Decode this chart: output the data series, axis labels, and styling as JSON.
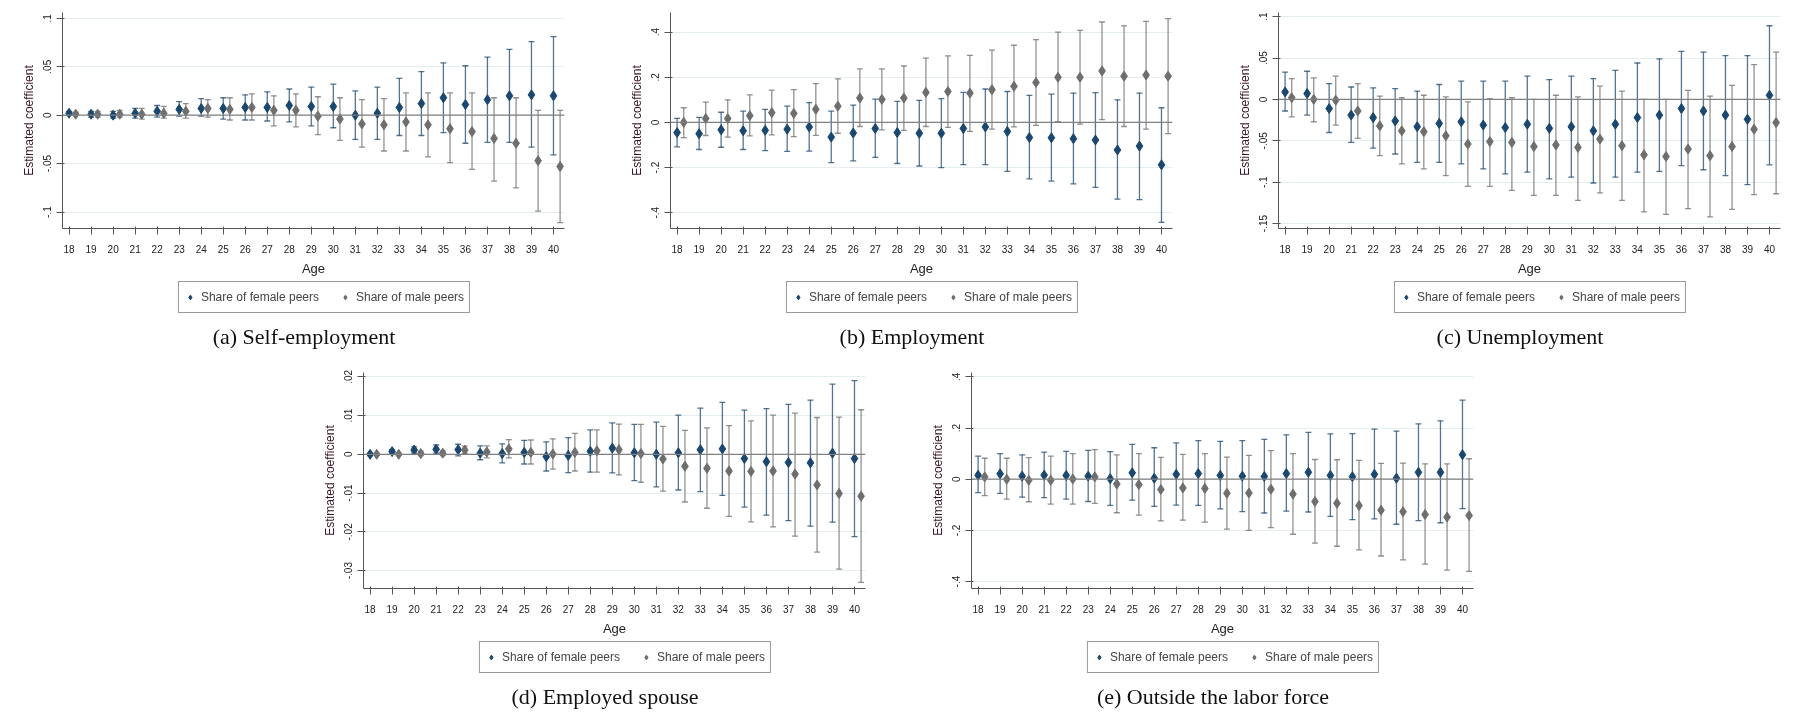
{
  "chart_data": [
    {
      "type": "scatter",
      "title": "(a) Self-employment",
      "xlabel": "Age",
      "ylabel": "Estimated coefficient",
      "marker": "diamond",
      "grid": "y",
      "legend": "bottom",
      "xlim": [
        17.7,
        40.5
      ],
      "ylim": [
        -0.117,
        0.106
      ],
      "xticks": [
        18,
        19,
        20,
        21,
        22,
        23,
        24,
        25,
        26,
        27,
        28,
        29,
        30,
        31,
        32,
        33,
        34,
        35,
        36,
        37,
        38,
        39,
        40
      ],
      "yticks": [
        {
          "value": -0.1,
          "label": "-.1"
        },
        {
          "value": -0.05,
          "label": "-.05"
        },
        0,
        {
          "value": 0.05,
          "label": ".05"
        },
        {
          "value": 0.1,
          "label": ".1"
        }
      ],
      "ref_lines": [
        {
          "axis": "y",
          "value": 0,
          "color": "#808080"
        }
      ],
      "series": [
        {
          "name": "Share of female peers",
          "color": "#1a476f",
          "x": [
            18,
            19,
            20,
            21,
            22,
            23,
            24,
            25,
            26,
            27,
            28,
            29,
            30,
            31,
            32,
            33,
            34,
            35,
            36,
            37,
            38,
            39,
            40
          ],
          "values": [
            0.002,
            0.001,
            0,
            0.002,
            0.004,
            0.006,
            0.007,
            0.007,
            0.008,
            0.008,
            0.01,
            0.009,
            0.009,
            0,
            0.002,
            0.008,
            0.012,
            0.018,
            0.011,
            0.016,
            0.02,
            0.021,
            0.02
          ],
          "errors": [
            [
              0,
              0.004
            ],
            [
              -0.002,
              0.004
            ],
            [
              -0.003,
              0.004
            ],
            [
              -0.003,
              0.007
            ],
            [
              -0.002,
              0.01
            ],
            [
              -0.001,
              0.014
            ],
            [
              -0.001,
              0.017
            ],
            [
              -0.004,
              0.018
            ],
            [
              -0.005,
              0.021
            ],
            [
              -0.006,
              0.024
            ],
            [
              -0.007,
              0.027
            ],
            [
              -0.011,
              0.029
            ],
            [
              -0.013,
              0.032
            ],
            [
              -0.025,
              0.025
            ],
            [
              -0.025,
              0.029
            ],
            [
              -0.021,
              0.038
            ],
            [
              -0.021,
              0.045
            ],
            [
              -0.018,
              0.054
            ],
            [
              -0.029,
              0.051
            ],
            [
              -0.028,
              0.06
            ],
            [
              -0.028,
              0.068
            ],
            [
              -0.033,
              0.076
            ],
            [
              -0.041,
              0.081
            ]
          ]
        },
        {
          "name": "Share of male peers",
          "color": "#6e6e6e",
          "x": [
            18.3,
            19.3,
            20.3,
            21.3,
            22.3,
            23.3,
            24.3,
            25.3,
            26.3,
            27.3,
            28.3,
            29.3,
            30.3,
            31.3,
            32.3,
            33.3,
            34.3,
            35.3,
            36.3,
            37.3,
            38.3,
            39.3,
            40.3
          ],
          "values": [
            0.001,
            0.001,
            0.001,
            0.001,
            0.002,
            0.004,
            0.007,
            0.006,
            0.008,
            0.005,
            0.005,
            -0.001,
            -0.004,
            -0.009,
            -0.01,
            -0.007,
            -0.01,
            -0.014,
            -0.017,
            -0.024,
            -0.029,
            -0.047,
            -0.053
          ],
          "errors": [
            [
              0,
              0.003
            ],
            [
              -0.002,
              0.004
            ],
            [
              -0.002,
              0.005
            ],
            [
              -0.004,
              0.007
            ],
            [
              -0.003,
              0.009
            ],
            [
              -0.003,
              0.012
            ],
            [
              -0.002,
              0.016
            ],
            [
              -0.005,
              0.018
            ],
            [
              -0.005,
              0.022
            ],
            [
              -0.011,
              0.02
            ],
            [
              -0.012,
              0.022
            ],
            [
              -0.02,
              0.019
            ],
            [
              -0.026,
              0.018
            ],
            [
              -0.033,
              0.016
            ],
            [
              -0.037,
              0.017
            ],
            [
              -0.037,
              0.023
            ],
            [
              -0.043,
              0.023
            ],
            [
              -0.049,
              0.023
            ],
            [
              -0.056,
              0.023
            ],
            [
              -0.068,
              0.018
            ],
            [
              -0.075,
              0.018
            ],
            [
              -0.099,
              0.005
            ],
            [
              -0.111,
              0.005
            ]
          ]
        }
      ]
    },
    {
      "type": "scatter",
      "title": "(b) Employment",
      "xlabel": "Age",
      "ylabel": "Estimated coefficient",
      "marker": "diamond",
      "grid": "y",
      "legend": "bottom",
      "xlim": [
        17.7,
        40.5
      ],
      "ylim": [
        -0.47,
        0.487
      ],
      "xticks": [
        18,
        19,
        20,
        21,
        22,
        23,
        24,
        25,
        26,
        27,
        28,
        29,
        30,
        31,
        32,
        33,
        34,
        35,
        36,
        37,
        38,
        39,
        40
      ],
      "yticks": [
        {
          "value": -0.4,
          "label": "-.4"
        },
        {
          "value": -0.2,
          "label": "-.2"
        },
        0,
        {
          "value": 0.2,
          "label": ".2"
        },
        {
          "value": 0.4,
          "label": ".4"
        }
      ],
      "ref_lines": [
        {
          "axis": "y",
          "value": 0,
          "color": "#808080"
        }
      ],
      "series": [
        {
          "name": "Share of female peers",
          "color": "#1a476f",
          "x": [
            18,
            19,
            20,
            21,
            22,
            23,
            24,
            25,
            26,
            27,
            28,
            29,
            30,
            31,
            32,
            33,
            34,
            35,
            36,
            37,
            38,
            39,
            40
          ],
          "values": [
            -0.045,
            -0.05,
            -0.033,
            -0.037,
            -0.035,
            -0.03,
            -0.02,
            -0.065,
            -0.047,
            -0.027,
            -0.045,
            -0.048,
            -0.048,
            -0.027,
            -0.02,
            -0.04,
            -0.067,
            -0.068,
            -0.072,
            -0.078,
            -0.122,
            -0.105,
            -0.188
          ],
          "errors": [
            [
              -0.108,
              0.018
            ],
            [
              -0.12,
              0.022
            ],
            [
              -0.11,
              0.045
            ],
            [
              -0.12,
              0.05
            ],
            [
              -0.125,
              0.058
            ],
            [
              -0.128,
              0.072
            ],
            [
              -0.127,
              0.088
            ],
            [
              -0.178,
              0.05
            ],
            [
              -0.17,
              0.077
            ],
            [
              -0.155,
              0.103
            ],
            [
              -0.182,
              0.093
            ],
            [
              -0.193,
              0.098
            ],
            [
              -0.2,
              0.105
            ],
            [
              -0.187,
              0.133
            ],
            [
              -0.187,
              0.148
            ],
            [
              -0.217,
              0.137
            ],
            [
              -0.25,
              0.12
            ],
            [
              -0.26,
              0.125
            ],
            [
              -0.272,
              0.13
            ],
            [
              -0.288,
              0.132
            ],
            [
              -0.34,
              0.1
            ],
            [
              -0.342,
              0.13
            ],
            [
              -0.443,
              0.065
            ]
          ]
        },
        {
          "name": "Share of male peers",
          "color": "#6e6e6e",
          "x": [
            18.3,
            19.3,
            20.3,
            21.3,
            22.3,
            23.3,
            24.3,
            25.3,
            26.3,
            27.3,
            28.3,
            29.3,
            30.3,
            31.3,
            32.3,
            33.3,
            34.3,
            35.3,
            36.3,
            37.3,
            38.3,
            39.3,
            40.3
          ],
          "values": [
            0,
            0.017,
            0.017,
            0.03,
            0.043,
            0.04,
            0.058,
            0.072,
            0.108,
            0.102,
            0.108,
            0.133,
            0.137,
            0.13,
            0.145,
            0.16,
            0.177,
            0.2,
            0.2,
            0.228,
            0.205,
            0.21,
            0.205
          ],
          "errors": [
            [
              -0.067,
              0.065
            ],
            [
              -0.058,
              0.09
            ],
            [
              -0.065,
              0.1
            ],
            [
              -0.06,
              0.122
            ],
            [
              -0.055,
              0.143
            ],
            [
              -0.063,
              0.145
            ],
            [
              -0.057,
              0.172
            ],
            [
              -0.048,
              0.193
            ],
            [
              -0.018,
              0.237
            ],
            [
              -0.033,
              0.237
            ],
            [
              -0.035,
              0.25
            ],
            [
              -0.018,
              0.285
            ],
            [
              -0.022,
              0.295
            ],
            [
              -0.04,
              0.297
            ],
            [
              -0.03,
              0.32
            ],
            [
              -0.02,
              0.342
            ],
            [
              -0.013,
              0.367
            ],
            [
              0.003,
              0.4
            ],
            [
              -0.008,
              0.408
            ],
            [
              0.012,
              0.445
            ],
            [
              -0.018,
              0.428
            ],
            [
              -0.03,
              0.448
            ],
            [
              -0.05,
              0.46
            ]
          ]
        }
      ]
    },
    {
      "type": "scatter",
      "title": "(c) Unemployment",
      "xlabel": "Age",
      "ylabel": "Estimated coefficient",
      "marker": "diamond",
      "grid": "y",
      "legend": "bottom",
      "xlim": [
        17.7,
        40.5
      ],
      "ylim": [
        -0.156,
        0.105
      ],
      "xticks": [
        18,
        19,
        20,
        21,
        22,
        23,
        24,
        25,
        26,
        27,
        28,
        29,
        30,
        31,
        32,
        33,
        34,
        35,
        36,
        37,
        38,
        39,
        40
      ],
      "yticks": [
        {
          "value": -0.15,
          "label": "-.15"
        },
        {
          "value": -0.1,
          "label": "-.1"
        },
        {
          "value": -0.05,
          "label": "-.05"
        },
        0,
        {
          "value": 0.05,
          "label": ".05"
        },
        {
          "value": 0.1,
          "label": ".1"
        }
      ],
      "ref_lines": [
        {
          "axis": "y",
          "value": 0,
          "color": "#808080"
        }
      ],
      "series": [
        {
          "name": "Share of female peers",
          "color": "#1a476f",
          "x": [
            18,
            19,
            20,
            21,
            22,
            23,
            24,
            25,
            26,
            27,
            28,
            29,
            30,
            31,
            32,
            33,
            34,
            35,
            36,
            37,
            38,
            39,
            40
          ],
          "values": [
            0.009,
            0.007,
            -0.011,
            -0.019,
            -0.022,
            -0.026,
            -0.033,
            -0.029,
            -0.027,
            -0.031,
            -0.034,
            -0.03,
            -0.035,
            -0.033,
            -0.038,
            -0.03,
            -0.022,
            -0.019,
            -0.011,
            -0.014,
            -0.019,
            -0.024,
            0.005
          ],
          "errors": [
            [
              -0.014,
              0.033
            ],
            [
              -0.019,
              0.034
            ],
            [
              -0.04,
              0.019
            ],
            [
              -0.052,
              0.015
            ],
            [
              -0.059,
              0.014
            ],
            [
              -0.066,
              0.013
            ],
            [
              -0.076,
              0.01
            ],
            [
              -0.076,
              0.018
            ],
            [
              -0.078,
              0.022
            ],
            [
              -0.084,
              0.022
            ],
            [
              -0.09,
              0.022
            ],
            [
              -0.088,
              0.028
            ],
            [
              -0.096,
              0.024
            ],
            [
              -0.094,
              0.028
            ],
            [
              -0.101,
              0.025
            ],
            [
              -0.094,
              0.035
            ],
            [
              -0.088,
              0.044
            ],
            [
              -0.087,
              0.049
            ],
            [
              -0.08,
              0.058
            ],
            [
              -0.085,
              0.057
            ],
            [
              -0.092,
              0.053
            ],
            [
              -0.103,
              0.053
            ],
            [
              -0.079,
              0.089
            ]
          ]
        },
        {
          "name": "Share of male peers",
          "color": "#6e6e6e",
          "x": [
            18.3,
            19.3,
            20.3,
            21.3,
            22.3,
            23.3,
            24.3,
            25.3,
            26.3,
            27.3,
            28.3,
            29.3,
            30.3,
            31.3,
            32.3,
            33.3,
            34.3,
            35.3,
            36.3,
            37.3,
            38.3,
            39.3,
            40.3
          ],
          "values": [
            0.002,
            0,
            -0.001,
            -0.014,
            -0.032,
            -0.038,
            -0.039,
            -0.044,
            -0.054,
            -0.051,
            -0.052,
            -0.057,
            -0.055,
            -0.058,
            -0.048,
            -0.056,
            -0.067,
            -0.069,
            -0.06,
            -0.068,
            -0.057,
            -0.036,
            -0.028
          ],
          "errors": [
            [
              -0.021,
              0.025
            ],
            [
              -0.027,
              0.026
            ],
            [
              -0.031,
              0.028
            ],
            [
              -0.047,
              0.019
            ],
            [
              -0.068,
              0.004
            ],
            [
              -0.078,
              0.002
            ],
            [
              -0.084,
              0.005
            ],
            [
              -0.092,
              0.003
            ],
            [
              -0.105,
              -0.003
            ],
            [
              -0.105,
              0.001
            ],
            [
              -0.11,
              0.002
            ],
            [
              -0.116,
              0
            ],
            [
              -0.116,
              0.005
            ],
            [
              -0.122,
              0.003
            ],
            [
              -0.113,
              0.016
            ],
            [
              -0.122,
              0.01
            ],
            [
              -0.136,
              0
            ],
            [
              -0.139,
              0
            ],
            [
              -0.132,
              0.011
            ],
            [
              -0.142,
              0.004
            ],
            [
              -0.133,
              0.017
            ],
            [
              -0.115,
              0.042
            ],
            [
              -0.114,
              0.057
            ]
          ]
        }
      ]
    },
    {
      "type": "scatter",
      "title": "(d) Employed spouse",
      "xlabel": "Age",
      "ylabel": "Estimated coefficient",
      "marker": "diamond",
      "grid": "y",
      "legend": "bottom",
      "xlim": [
        17.7,
        40.5
      ],
      "ylim": [
        -0.0346,
        0.0211
      ],
      "xticks": [
        18,
        19,
        20,
        21,
        22,
        23,
        24,
        25,
        26,
        27,
        28,
        29,
        30,
        31,
        32,
        33,
        34,
        35,
        36,
        37,
        38,
        39,
        40
      ],
      "yticks": [
        {
          "value": -0.03,
          "label": "-.03"
        },
        {
          "value": -0.02,
          "label": "-.02"
        },
        {
          "value": -0.01,
          "label": "-.01"
        },
        0,
        {
          "value": 0.01,
          "label": ".01"
        },
        {
          "value": 0.02,
          "label": ".02"
        }
      ],
      "ref_lines": [
        {
          "axis": "y",
          "value": 0,
          "color": "#808080"
        }
      ],
      "series": [
        {
          "name": "Share of female peers",
          "color": "#1a476f",
          "x": [
            18,
            19,
            20,
            21,
            22,
            23,
            24,
            25,
            26,
            27,
            28,
            29,
            30,
            31,
            32,
            33,
            34,
            35,
            36,
            37,
            38,
            39,
            40
          ],
          "values": [
            0,
            0.0007,
            0.0011,
            0.0013,
            0.0012,
            0.0003,
            0.0002,
            0.0005,
            -0.0006,
            -0.0003,
            0.0008,
            0.0016,
            0.0004,
            0,
            0.0004,
            0.0012,
            0.0014,
            -0.0011,
            -0.0019,
            -0.0021,
            -0.0022,
            0.0003,
            -0.0011
          ],
          "errors": [
            [
              -0.0003,
              0.0003
            ],
            [
              0.0002,
              0.0012
            ],
            [
              0.0003,
              0.0019
            ],
            [
              0.0003,
              0.0024
            ],
            [
              -0.0004,
              0.0026
            ],
            [
              -0.0014,
              0.0022
            ],
            [
              -0.0022,
              0.0027
            ],
            [
              -0.0025,
              0.0036
            ],
            [
              -0.0043,
              0.0032
            ],
            [
              -0.0047,
              0.0043
            ],
            [
              -0.0046,
              0.0063
            ],
            [
              -0.0048,
              0.0081
            ],
            [
              -0.0068,
              0.0077
            ],
            [
              -0.0084,
              0.0083
            ],
            [
              -0.0092,
              0.0101
            ],
            [
              -0.0096,
              0.0119
            ],
            [
              -0.0106,
              0.0134
            ],
            [
              -0.0136,
              0.0114
            ],
            [
              -0.0157,
              0.0118
            ],
            [
              -0.0171,
              0.0129
            ],
            [
              -0.0185,
              0.014
            ],
            [
              -0.0175,
              0.0181
            ],
            [
              -0.0212,
              0.019
            ]
          ]
        },
        {
          "name": "Share of male peers",
          "color": "#6e6e6e",
          "x": [
            18.3,
            19.3,
            20.3,
            21.3,
            22.3,
            23.3,
            24.3,
            25.3,
            26.3,
            27.3,
            28.3,
            29.3,
            30.3,
            31.3,
            32.3,
            33.3,
            34.3,
            35.3,
            36.3,
            37.3,
            38.3,
            39.3,
            40.3
          ],
          "values": [
            0,
            0,
            0.0002,
            0.0003,
            0.0011,
            0.0006,
            0.0014,
            0.0005,
            0.0001,
            0.0005,
            0.0009,
            0.0012,
            0.0002,
            -0.0012,
            -0.0031,
            -0.0036,
            -0.0043,
            -0.0044,
            -0.0043,
            -0.0051,
            -0.0079,
            -0.0101,
            -0.0108
          ],
          "errors": [
            [
              -0.0002,
              0.0002
            ],
            [
              -0.0002,
              0.0002
            ],
            [
              -0.0003,
              0.0008
            ],
            [
              -0.0003,
              0.0009
            ],
            [
              0.0002,
              0.0021
            ],
            [
              -0.0009,
              0.0022
            ],
            [
              -0.0009,
              0.0038
            ],
            [
              -0.0025,
              0.0037
            ],
            [
              -0.0038,
              0.004
            ],
            [
              -0.0043,
              0.0054
            ],
            [
              -0.0046,
              0.0063
            ],
            [
              -0.0053,
              0.0078
            ],
            [
              -0.0072,
              0.0077
            ],
            [
              -0.0095,
              0.0072
            ],
            [
              -0.0123,
              0.0062
            ],
            [
              -0.0139,
              0.0068
            ],
            [
              -0.016,
              0.0074
            ],
            [
              -0.0174,
              0.0086
            ],
            [
              -0.0187,
              0.0101
            ],
            [
              -0.0211,
              0.0106
            ],
            [
              -0.0252,
              0.0095
            ],
            [
              -0.0296,
              0.0096
            ],
            [
              -0.033,
              0.0115
            ]
          ]
        }
      ]
    },
    {
      "type": "scatter",
      "title": "(e) Outside the labor force",
      "xlabel": "Age",
      "ylabel": "Estimated coefficient",
      "marker": "diamond",
      "grid": "y",
      "legend": "bottom",
      "xlim": [
        17.7,
        40.5
      ],
      "ylim": [
        -0.427,
        0.417
      ],
      "xticks": [
        18,
        19,
        20,
        21,
        22,
        23,
        24,
        25,
        26,
        27,
        28,
        29,
        30,
        31,
        32,
        33,
        34,
        35,
        36,
        37,
        38,
        39,
        40
      ],
      "yticks": [
        {
          "value": -0.4,
          "label": "-.4"
        },
        {
          "value": -0.2,
          "label": "-.2"
        },
        0,
        {
          "value": 0.2,
          "label": ".2"
        },
        {
          "value": 0.4,
          "label": ".4"
        }
      ],
      "ref_lines": [
        {
          "axis": "y",
          "value": 0,
          "color": "#808080"
        }
      ],
      "series": [
        {
          "name": "Share of female peers",
          "color": "#1a476f",
          "x": [
            18,
            19,
            20,
            21,
            22,
            23,
            24,
            25,
            26,
            27,
            28,
            29,
            30,
            31,
            32,
            33,
            34,
            35,
            36,
            37,
            38,
            39,
            40
          ],
          "values": [
            0.016,
            0.021,
            0.012,
            0.016,
            0.015,
            0.012,
            0.002,
            0.025,
            0.004,
            0.019,
            0.022,
            0.015,
            0.012,
            0.011,
            0.022,
            0.027,
            0.015,
            0.01,
            0.019,
            0.004,
            0.027,
            0.027,
            0.096
          ],
          "errors": [
            [
              -0.052,
              0.09
            ],
            [
              -0.055,
              0.1
            ],
            [
              -0.07,
              0.095
            ],
            [
              -0.072,
              0.106
            ],
            [
              -0.078,
              0.109
            ],
            [
              -0.087,
              0.113
            ],
            [
              -0.102,
              0.108
            ],
            [
              -0.082,
              0.136
            ],
            [
              -0.106,
              0.123
            ],
            [
              -0.101,
              0.142
            ],
            [
              -0.102,
              0.151
            ],
            [
              -0.116,
              0.148
            ],
            [
              -0.127,
              0.151
            ],
            [
              -0.132,
              0.156
            ],
            [
              -0.125,
              0.173
            ],
            [
              -0.128,
              0.183
            ],
            [
              -0.145,
              0.177
            ],
            [
              -0.158,
              0.178
            ],
            [
              -0.155,
              0.196
            ],
            [
              -0.176,
              0.188
            ],
            [
              -0.162,
              0.216
            ],
            [
              -0.17,
              0.228
            ],
            [
              -0.115,
              0.309
            ]
          ]
        },
        {
          "name": "Share of male peers",
          "color": "#6e6e6e",
          "x": [
            18.3,
            19.3,
            20.3,
            21.3,
            22.3,
            23.3,
            24.3,
            25.3,
            26.3,
            27.3,
            28.3,
            29.3,
            30.3,
            31.3,
            32.3,
            33.3,
            34.3,
            35.3,
            36.3,
            37.3,
            38.3,
            39.3,
            40.3
          ],
          "values": [
            0.009,
            0,
            -0.004,
            -0.004,
            0.001,
            0.009,
            -0.019,
            -0.021,
            -0.04,
            -0.034,
            -0.036,
            -0.055,
            -0.054,
            -0.039,
            -0.058,
            -0.087,
            -0.094,
            -0.103,
            -0.121,
            -0.127,
            -0.138,
            -0.148,
            -0.142
          ],
          "errors": [
            [
              -0.064,
              0.082
            ],
            [
              -0.078,
              0.082
            ],
            [
              -0.088,
              0.084
            ],
            [
              -0.097,
              0.09
            ],
            [
              -0.097,
              0.1
            ],
            [
              -0.094,
              0.116
            ],
            [
              -0.131,
              0.095
            ],
            [
              -0.14,
              0.1
            ],
            [
              -0.163,
              0.085
            ],
            [
              -0.16,
              0.097
            ],
            [
              -0.168,
              0.1
            ],
            [
              -0.195,
              0.086
            ],
            [
              -0.2,
              0.093
            ],
            [
              -0.189,
              0.112
            ],
            [
              -0.215,
              0.1
            ],
            [
              -0.25,
              0.077
            ],
            [
              -0.262,
              0.076
            ],
            [
              -0.276,
              0.074
            ],
            [
              -0.3,
              0.062
            ],
            [
              -0.315,
              0.063
            ],
            [
              -0.332,
              0.06
            ],
            [
              -0.355,
              0.06
            ],
            [
              -0.36,
              0.08
            ]
          ]
        }
      ]
    }
  ]
}
